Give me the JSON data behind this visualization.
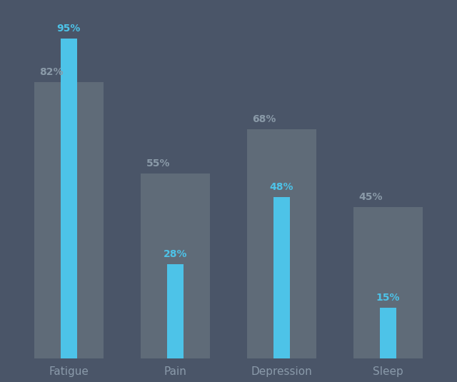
{
  "categories": [
    "Fatigue",
    "Pain",
    "Depression",
    "Sleep"
  ],
  "gray_values": [
    82,
    55,
    68,
    45
  ],
  "blue_values": [
    95,
    28,
    48,
    15
  ],
  "gray_color": "#5f6b78",
  "blue_color": "#4dc3e8",
  "background_color": "#4a5568",
  "wide_bar_width": 0.65,
  "narrow_bar_width": 0.15,
  "ylim": [
    0,
    105
  ],
  "tick_color": "#8a9aaa",
  "value_label_color_gray": "#8a9aa8",
  "value_label_color_blue": "#4dc3e8",
  "x_positions": [
    0,
    1,
    2,
    3
  ]
}
